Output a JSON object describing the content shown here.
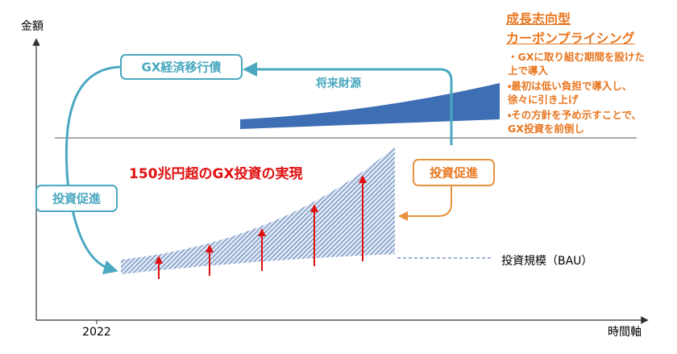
{
  "axes": {
    "y_label": "金額",
    "x_label": "時間軸",
    "x_start": "2022"
  },
  "bond_box": "GX経済移行債",
  "future_funding": "将来財源",
  "left_box": "投資促進",
  "right_box": "投資促進",
  "headline": "150兆円超のGX投資の実現",
  "bau_label": "投資規模（BAU）",
  "pricing": {
    "title_lines": [
      "成長志向型",
      "カーボンプライシング"
    ],
    "bullets": [
      "・GXに取り組む期間を設けた上で導入",
      "・最初は低い負担で導入し、徐々に引き上げ",
      "・その方針を予め示すことで、GX投資を前倒し"
    ]
  }
}
